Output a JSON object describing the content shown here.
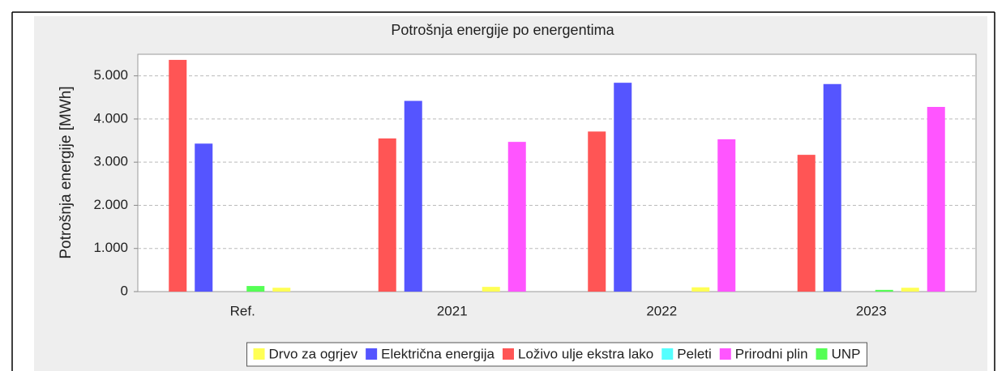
{
  "chart_data": {
    "type": "bar",
    "title": "Potrošnja energije po energentima",
    "y_label": "Potrošnja energije [MWh]",
    "categories": [
      "Ref.",
      "2021",
      "2022",
      "2023"
    ],
    "series": [
      {
        "name": "Drvo za ogrjev",
        "color": "#ffff55",
        "values": [
          90,
          110,
          100,
          90
        ]
      },
      {
        "name": "Električna energija",
        "color": "#5555ff",
        "values": [
          3430,
          4420,
          4840,
          4810
        ]
      },
      {
        "name": "Loživo ulje ekstra lako",
        "color": "#ff5555",
        "values": [
          5370,
          3550,
          3710,
          3170
        ]
      },
      {
        "name": "Peleti",
        "color": "#55ffff",
        "values": [
          0,
          0,
          0,
          0
        ]
      },
      {
        "name": "Prirodni plin",
        "color": "#ff55ff",
        "values": [
          0,
          3470,
          3530,
          4280
        ]
      },
      {
        "name": "UNP",
        "color": "#55ff55",
        "values": [
          130,
          0,
          0,
          40
        ]
      }
    ],
    "ylim": [
      0,
      5500
    ],
    "yticks": [
      0,
      {
        "value": 1000,
        "label": "1.000"
      },
      {
        "value": 2000,
        "label": "2.000"
      },
      {
        "value": 3000,
        "label": "3.000"
      },
      {
        "value": 4000,
        "label": "4.000"
      },
      {
        "value": 5000,
        "label": "5.000"
      }
    ],
    "grid": true,
    "legend": "bottom"
  }
}
